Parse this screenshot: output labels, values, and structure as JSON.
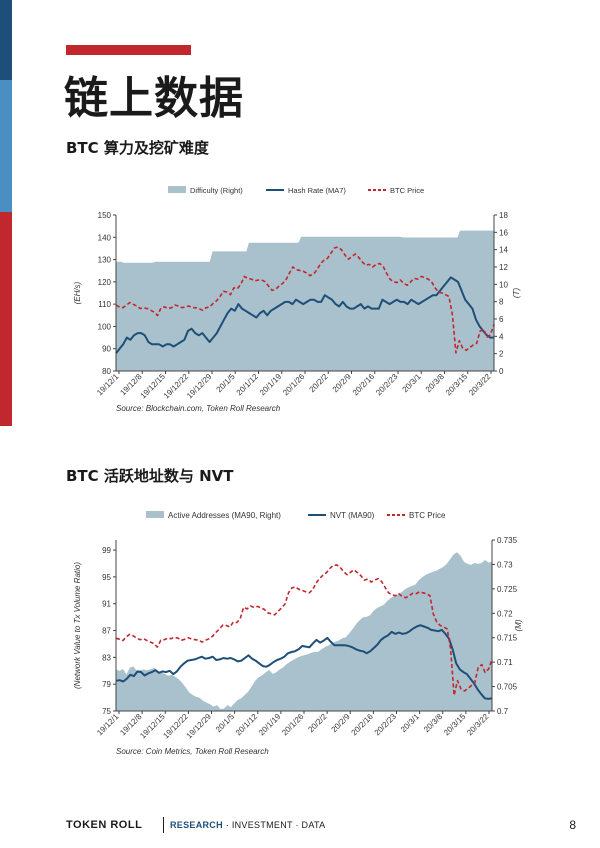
{
  "page": {
    "title": "链上数据",
    "number": "8"
  },
  "footer": {
    "brand": "TOKEN ROLL",
    "tagline_1": "RESEARCH",
    "tagline_2": "· INVESTMENT · DATA"
  },
  "colors": {
    "area": "#a9c1cc",
    "line_blue": "#1e4f78",
    "line_red": "#c0282d"
  },
  "chart_data": [
    {
      "type": "line",
      "section_title": "BTC 算力及挖矿难度",
      "legend": [
        "Difficulty (Right)",
        "Hash Rate (MA7)",
        "BTC Price"
      ],
      "ylabel_left": "(EH/s)",
      "ylabel_right": "(T)",
      "ylim": [
        80,
        150
      ],
      "yticks": [
        "80",
        "90",
        "100",
        "110",
        "120",
        "130",
        "140",
        "150"
      ],
      "ylim_right": [
        0,
        18
      ],
      "yticks_right": [
        "0",
        "2",
        "4",
        "6",
        "8",
        "10",
        "12",
        "14",
        "16",
        "18"
      ],
      "xticks": [
        "19/12/1",
        "19/12/8",
        "19/12/15",
        "19/12/22",
        "19/12/29",
        "20/1/5",
        "20/1/12",
        "20/1/19",
        "20/1/26",
        "20/2/2",
        "20/2/9",
        "20/2/16",
        "20/2/23",
        "20/3/1",
        "20/3/8",
        "20/3/15",
        "20/3/22"
      ],
      "source": "Source: Blockchain.com, Token Roll Research",
      "difficulty": [
        12.6,
        12.6,
        12.6,
        12.5,
        12.5,
        12.5,
        12.5,
        12.5,
        12.5,
        12.5,
        12.5,
        12.5,
        12.5,
        12.5,
        12.5,
        12.6,
        12.6,
        12.6,
        12.6,
        12.6,
        12.6,
        12.6,
        12.6,
        12.6,
        12.6,
        12.6,
        12.6,
        12.6,
        12.6,
        12.6,
        12.6,
        12.6,
        12.6,
        12.6,
        12.6,
        12.6,
        12.6,
        13.8,
        13.8,
        13.8,
        13.8,
        13.8,
        13.8,
        13.8,
        13.8,
        13.8,
        13.8,
        13.8,
        13.8,
        13.8,
        13.8,
        14.8,
        14.8,
        14.8,
        14.8,
        14.8,
        14.8,
        14.8,
        14.8,
        14.8,
        14.8,
        14.8,
        14.8,
        14.8,
        14.8,
        14.8,
        14.8,
        14.8,
        14.8,
        14.8,
        14.8,
        15.5,
        15.5,
        15.5,
        15.5,
        15.5,
        15.5,
        15.5,
        15.5,
        15.5,
        15.5,
        15.5,
        15.5,
        15.5,
        15.5,
        15.5,
        15.5,
        15.5,
        15.5,
        15.5,
        15.5,
        15.5,
        15.5,
        15.5,
        15.5,
        15.5,
        15.5,
        15.5,
        15.5,
        15.5,
        15.5,
        15.5,
        15.5,
        15.5,
        15.5,
        15.5,
        15.5,
        15.5,
        15.5,
        15.5,
        15.4,
        15.4,
        15.4,
        15.4,
        15.4,
        15.4,
        15.4,
        15.4,
        15.4,
        15.4,
        15.4,
        15.4,
        15.4,
        15.4,
        15.4,
        15.4,
        15.4,
        15.4,
        15.4,
        15.4,
        15.4,
        15.4,
        16.2,
        16.2,
        16.2,
        16.2,
        16.2,
        16.2,
        16.2,
        16.2,
        16.2,
        16.2,
        16.2,
        16.2,
        16.2,
        16.2
      ],
      "hash_rate": [
        88,
        90,
        92,
        95,
        94,
        96,
        97,
        97,
        96,
        93,
        92,
        92,
        92,
        91,
        92,
        92,
        91,
        92,
        93,
        94,
        98,
        99,
        97,
        96,
        97,
        95,
        93,
        95,
        97,
        100,
        103,
        106,
        108,
        107,
        110,
        108,
        107,
        106,
        105,
        104,
        106,
        107,
        105,
        107,
        108,
        109,
        110,
        111,
        111,
        110,
        112,
        111,
        110,
        111,
        112,
        112,
        111,
        111,
        114,
        113,
        112,
        110,
        109,
        111,
        109,
        108,
        108,
        109,
        110,
        108,
        109,
        108,
        108,
        108,
        112,
        111,
        110,
        111,
        112,
        111,
        111,
        110,
        112,
        111,
        110,
        111,
        112,
        113,
        114,
        114,
        116,
        118,
        120,
        122,
        121,
        120,
        116,
        112,
        110,
        108,
        103,
        100,
        98,
        96,
        95,
        95
      ],
      "btc_price": [
        7.6,
        7.4,
        7.3,
        7.6,
        7.9,
        7.7,
        7.5,
        7.2,
        7.3,
        7.2,
        7.0,
        6.8,
        6.4,
        7.3,
        7.4,
        7.2,
        7.3,
        7.6,
        7.5,
        7.3,
        7.4,
        7.5,
        7.3,
        7.3,
        7.2,
        7.0,
        7.3,
        7.4,
        7.8,
        8.1,
        8.6,
        9.2,
        9.1,
        8.8,
        9.6,
        9.5,
        10.0,
        10.9,
        10.7,
        10.6,
        10.4,
        10.5,
        10.5,
        10.3,
        9.8,
        9.3,
        9.4,
        9.8,
        10.1,
        10.5,
        11.3,
        12.0,
        11.7,
        11.6,
        11.5,
        11.3,
        11.0,
        11.2,
        11.7,
        12.4,
        12.8,
        13.0,
        13.6,
        14.2,
        14.3,
        14.0,
        13.4,
        12.9,
        13.2,
        13.5,
        13.1,
        12.6,
        12.2,
        12.3,
        12.0,
        12.3,
        12.4,
        12.1,
        11.3,
        10.6,
        10.3,
        10.2,
        10.5,
        10.1,
        9.9,
        10.3,
        10.7,
        10.6,
        10.9,
        10.8,
        10.6,
        10.3,
        9.6,
        9.1,
        9.0,
        8.8,
        8.6,
        6.5,
        2.1,
        3.5,
        2.6,
        2.4,
        2.7,
        3.0,
        3.2,
        4.6,
        4.8,
        3.9,
        4.2,
        5.4
      ]
    },
    {
      "type": "line",
      "section_title": "BTC 活跃地址数与 NVT",
      "legend": [
        "Active Addresses (MA90, Right)",
        "NVT (MA90)",
        "BTC Price"
      ],
      "ylabel_left": "(Network Value to Tx Volume Ratio)",
      "ylabel_right": "(M)",
      "ylim": [
        75,
        100.5
      ],
      "yticks": [
        "75",
        "79",
        "83",
        "87",
        "91",
        "95",
        "99"
      ],
      "ylim_right": [
        0.7,
        0.735
      ],
      "yticks_right": [
        "0.7",
        "0.705",
        "0.71",
        "0.715",
        "0.72",
        "0.725",
        "0.73",
        "0.735"
      ],
      "xticks": [
        "19/12/1",
        "19/12/8",
        "19/12/15",
        "19/12/22",
        "19/12/29",
        "20/1/5",
        "20/1/12",
        "20/1/19",
        "20/1/26",
        "20/2/2",
        "20/2/9",
        "20/2/16",
        "20/2/23",
        "20/3/1",
        "20/3/8",
        "20/3/15",
        "20/3/22"
      ],
      "source": "Source: Coin Metrics, Token Roll Research",
      "active_addresses": [
        0.7085,
        0.7082,
        0.7086,
        0.7075,
        0.7089,
        0.7091,
        0.7082,
        0.7084,
        0.7085,
        0.7083,
        0.7086,
        0.7088,
        0.7082,
        0.7079,
        0.7076,
        0.7072,
        0.7074,
        0.707,
        0.7065,
        0.7058,
        0.7049,
        0.7038,
        0.7033,
        0.7029,
        0.7027,
        0.7021,
        0.7017,
        0.7014,
        0.7009,
        0.7012,
        0.7004,
        0.7005,
        0.7012,
        0.7008,
        0.7016,
        0.7023,
        0.7026,
        0.7033,
        0.704,
        0.7051,
        0.7062,
        0.7069,
        0.7073,
        0.7079,
        0.7084,
        0.7076,
        0.7079,
        0.7085,
        0.7089,
        0.7096,
        0.7101,
        0.7105,
        0.7109,
        0.7112,
        0.7114,
        0.7116,
        0.7119,
        0.7121,
        0.7121,
        0.7126,
        0.7131,
        0.7134,
        0.7139,
        0.7142,
        0.7144,
        0.7149,
        0.7151,
        0.7159,
        0.7168,
        0.7178,
        0.7186,
        0.7192,
        0.7193,
        0.7196,
        0.7205,
        0.7211,
        0.7214,
        0.7218,
        0.7226,
        0.7232,
        0.7236,
        0.7239,
        0.7243,
        0.7249,
        0.7253,
        0.7256,
        0.7259,
        0.7268,
        0.7274,
        0.7279,
        0.7282,
        0.7285,
        0.7287,
        0.7291,
        0.7295,
        0.7301,
        0.7311,
        0.7321,
        0.7325,
        0.7317,
        0.7305,
        0.7301,
        0.7299,
        0.7303,
        0.7301,
        0.7303,
        0.7309,
        0.7304,
        0.7305
      ],
      "nvt": [
        79.5,
        79.6,
        79.4,
        79.8,
        80.4,
        80.2,
        80.9,
        80.8,
        80.3,
        80.6,
        80.8,
        81.1,
        80.7,
        80.9,
        80.8,
        81.0,
        80.5,
        80.9,
        81.6,
        82.1,
        82.5,
        82.6,
        82.7,
        82.9,
        83.1,
        82.8,
        82.9,
        83.1,
        82.6,
        82.7,
        82.9,
        82.8,
        82.9,
        82.7,
        82.4,
        82.5,
        82.9,
        83.3,
        82.8,
        82.5,
        82.1,
        81.7,
        81.6,
        81.9,
        82.3,
        82.6,
        82.8,
        83.1,
        83.6,
        83.8,
        83.9,
        84.2,
        84.7,
        84.6,
        84.5,
        85.1,
        85.6,
        85.2,
        85.5,
        85.9,
        85.3,
        84.8,
        84.8,
        84.8,
        84.8,
        84.7,
        84.5,
        84.2,
        84.0,
        83.9,
        83.6,
        83.9,
        84.4,
        84.9,
        85.6,
        86.0,
        86.3,
        86.8,
        86.5,
        86.7,
        86.5,
        86.6,
        86.9,
        87.3,
        87.6,
        87.8,
        87.6,
        87.4,
        87.1,
        87.0,
        86.9,
        87.1,
        86.5,
        85.8,
        84.2,
        82.1,
        81.2,
        80.8,
        80.5,
        79.8,
        79.1,
        78.2,
        77.5,
        76.9,
        76.8,
        76.9
      ],
      "btc_price": [
        0.7149,
        0.7147,
        0.7144,
        0.7152,
        0.7157,
        0.7154,
        0.7149,
        0.7146,
        0.7148,
        0.7144,
        0.7141,
        0.7138,
        0.7131,
        0.7145,
        0.7146,
        0.7149,
        0.7148,
        0.7151,
        0.7149,
        0.7145,
        0.7147,
        0.715,
        0.7147,
        0.7146,
        0.7145,
        0.7141,
        0.7145,
        0.7148,
        0.7153,
        0.7161,
        0.7168,
        0.7176,
        0.7175,
        0.7172,
        0.7182,
        0.7181,
        0.7189,
        0.7212,
        0.7209,
        0.7215,
        0.7212,
        0.7214,
        0.7211,
        0.7208,
        0.7201,
        0.7199,
        0.7197,
        0.7204,
        0.7211,
        0.7219,
        0.7242,
        0.7252,
        0.7254,
        0.7249,
        0.7247,
        0.7244,
        0.7242,
        0.7248,
        0.7262,
        0.7271,
        0.7278,
        0.7283,
        0.7292,
        0.7298,
        0.7299,
        0.7294,
        0.7285,
        0.7279,
        0.7284,
        0.7289,
        0.7283,
        0.7277,
        0.7268,
        0.727,
        0.7264,
        0.7268,
        0.7271,
        0.7265,
        0.7253,
        0.7242,
        0.7238,
        0.7236,
        0.724,
        0.7234,
        0.7232,
        0.7236,
        0.7241,
        0.724,
        0.7244,
        0.7242,
        0.724,
        0.7236,
        0.7198,
        0.7182,
        0.7175,
        0.7172,
        0.7168,
        0.7127,
        0.7032,
        0.7062,
        0.7045,
        0.7041,
        0.7046,
        0.7052,
        0.7058,
        0.7089,
        0.7095,
        0.7079,
        0.7086,
        0.7105
      ]
    }
  ]
}
